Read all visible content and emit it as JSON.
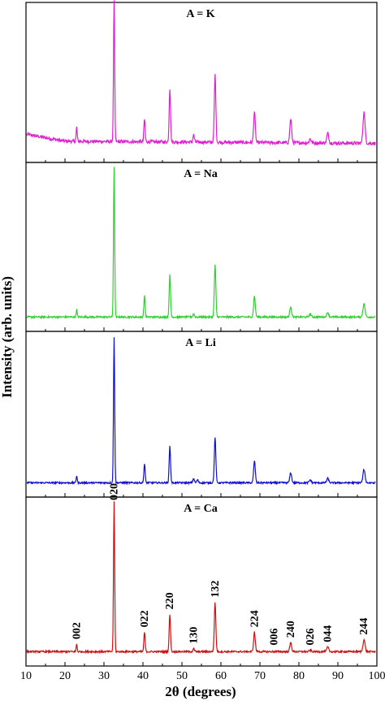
{
  "chart_data": {
    "type": "line",
    "xlabel": "2θ (degrees)",
    "ylabel": "Intensity (arb. units)",
    "xlim": [
      10,
      100
    ],
    "xticks": [
      10,
      20,
      30,
      40,
      50,
      60,
      70,
      80,
      90,
      100
    ],
    "grid": false,
    "panels": [
      {
        "title": "A = K",
        "color": "#e020d0",
        "baseline": 0.07,
        "baseline_slope": [
          [
            10,
            0.12
          ],
          [
            20,
            0.07
          ],
          [
            100,
            0.055
          ]
        ],
        "noise": 0.012,
        "peaks": [
          [
            23.0,
            0.1
          ],
          [
            32.6,
            1.0
          ],
          [
            40.4,
            0.16
          ],
          [
            46.9,
            0.38
          ],
          [
            53.0,
            0.05
          ],
          [
            58.5,
            0.48
          ],
          [
            68.6,
            0.22
          ],
          [
            77.9,
            0.17
          ],
          [
            82.9,
            0.03
          ],
          [
            87.4,
            0.07
          ],
          [
            96.7,
            0.22
          ]
        ]
      },
      {
        "title": "A = Na",
        "color": "#30d030",
        "baseline": 0.02,
        "noise": 0.006,
        "peaks": [
          [
            23.0,
            0.05
          ],
          [
            32.6,
            1.0
          ],
          [
            40.4,
            0.14
          ],
          [
            46.9,
            0.28
          ],
          [
            53.0,
            0.02
          ],
          [
            58.5,
            0.35
          ],
          [
            68.6,
            0.14
          ],
          [
            77.9,
            0.07
          ],
          [
            82.9,
            0.02
          ],
          [
            87.4,
            0.03
          ],
          [
            96.7,
            0.09
          ]
        ]
      },
      {
        "title": "A = Li",
        "color": "#1010d0",
        "baseline": 0.02,
        "noise": 0.006,
        "peaks": [
          [
            23.0,
            0.05
          ],
          [
            32.6,
            1.0
          ],
          [
            40.4,
            0.13
          ],
          [
            46.9,
            0.25
          ],
          [
            53.0,
            0.03
          ],
          [
            54.0,
            0.02
          ],
          [
            58.5,
            0.31
          ],
          [
            68.6,
            0.15
          ],
          [
            77.9,
            0.07
          ],
          [
            82.9,
            0.02
          ],
          [
            87.4,
            0.03
          ],
          [
            96.7,
            0.09
          ]
        ]
      },
      {
        "title": "A = Ca",
        "color": "#d01010",
        "baseline": 0.02,
        "noise": 0.006,
        "peaks": [
          [
            23.0,
            0.05
          ],
          [
            32.6,
            1.0
          ],
          [
            40.4,
            0.13
          ],
          [
            46.9,
            0.25
          ],
          [
            53.0,
            0.02
          ],
          [
            58.5,
            0.33
          ],
          [
            68.6,
            0.13
          ],
          [
            77.9,
            0.06
          ],
          [
            82.9,
            0.01
          ],
          [
            87.4,
            0.03
          ],
          [
            96.7,
            0.08
          ]
        ],
        "annotations": [
          {
            "label": "002",
            "x": 23.0,
            "y": 0.07
          },
          {
            "label": "020",
            "x": 32.6,
            "y": 1.0
          },
          {
            "label": "022",
            "x": 40.4,
            "y": 0.15
          },
          {
            "label": "220",
            "x": 46.9,
            "y": 0.27
          },
          {
            "label": "130",
            "x": 53.0,
            "y": 0.04
          },
          {
            "label": "132",
            "x": 58.5,
            "y": 0.35
          },
          {
            "label": "224",
            "x": 68.6,
            "y": 0.15
          },
          {
            "label": "006",
            "x": 73.6,
            "y": 0.03
          },
          {
            "label": "240",
            "x": 77.9,
            "y": 0.08
          },
          {
            "label": "026",
            "x": 82.9,
            "y": 0.03
          },
          {
            "label": "044",
            "x": 87.4,
            "y": 0.05
          },
          {
            "label": "244",
            "x": 96.7,
            "y": 0.1
          }
        ]
      }
    ]
  }
}
